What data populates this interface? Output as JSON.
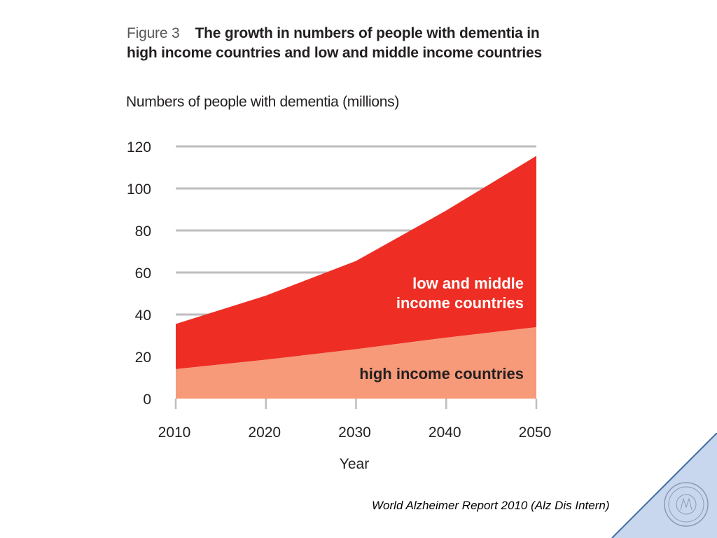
{
  "figure": {
    "label": "Figure 3",
    "title_line1": "The growth in numbers of people with dementia in",
    "title_line2": "high income countries and low and middle income countries"
  },
  "source": "World Alzheimer Report 2010 (Alz Dis Intern)",
  "colors": {
    "low_middle": "#ee2e24",
    "high": "#f69a7a",
    "grid": "#bcbec0",
    "corner": "#c9d7ee",
    "corner_line": "#3f6aa1"
  },
  "chart_data": {
    "type": "area",
    "stacked": true,
    "ylabel": "Numbers of people with dementia (millions)",
    "xlabel": "Year",
    "x": [
      2010,
      2020,
      2030,
      2040,
      2050
    ],
    "xlim": [
      2010,
      2050
    ],
    "ylim": [
      0,
      120
    ],
    "yticks": [
      0,
      20,
      40,
      60,
      80,
      100,
      120
    ],
    "xticks": [
      2010,
      2020,
      2030,
      2040,
      2050
    ],
    "grid": true,
    "series": [
      {
        "name": "high income countries",
        "values": [
          14,
          18.5,
          23.5,
          29,
          34
        ]
      },
      {
        "name": "low and middle income countries",
        "values": [
          21.5,
          30.5,
          42,
          60.5,
          81.5
        ]
      }
    ],
    "series_labels": [
      {
        "lines": [
          "high income countries"
        ]
      },
      {
        "lines": [
          "low and middle",
          "income countries"
        ]
      }
    ]
  }
}
